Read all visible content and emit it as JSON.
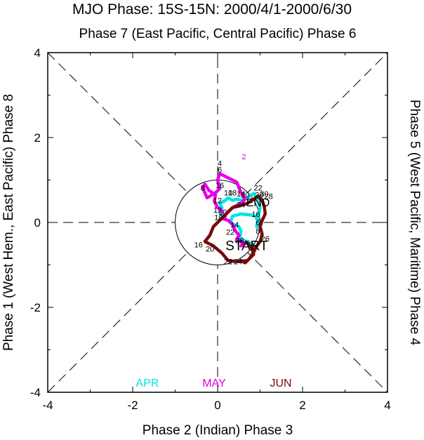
{
  "chart_data": {
    "type": "line",
    "title": "MJO Phase: 15S-15N: 2000/4/1-2000/6/30",
    "top_label": "Phase 7 (East Pacific, Central Pacific) Phase 6",
    "bottom_label": "Phase 2 (Indian) Phase 3",
    "left_label": "Phase 1 (West Hem., East Pacific) Phase 8",
    "right_label": "Phase 5 (West Pacific, Maritime) Phase 4",
    "xlim": [
      -4,
      4
    ],
    "ylim": [
      -4,
      4
    ],
    "x_ticks": [
      "-4",
      "-2",
      "0",
      "2",
      "4"
    ],
    "y_ticks": [
      "-4",
      "-2",
      "0",
      "2",
      "4"
    ],
    "unit_circle_radius": 1,
    "start_label": "START",
    "start_point": [
      0.85,
      -0.55
    ],
    "series": [
      {
        "name": "APR",
        "color": "#00e5e5",
        "points": [
          {
            "day": "1",
            "x": 0.85,
            "y": -0.55
          },
          {
            "day": "",
            "x": 0.72,
            "y": -0.45
          },
          {
            "day": "",
            "x": 0.6,
            "y": -0.42
          },
          {
            "day": "",
            "x": 0.52,
            "y": -0.35
          },
          {
            "day": "",
            "x": 0.55,
            "y": -0.2
          },
          {
            "day": "",
            "x": 0.5,
            "y": -0.1
          },
          {
            "day": "",
            "x": 0.38,
            "y": -0.05
          },
          {
            "day": "",
            "x": 0.3,
            "y": 0.0
          },
          {
            "day": "",
            "x": 0.35,
            "y": 0.15
          },
          {
            "day": "",
            "x": 0.55,
            "y": 0.2
          },
          {
            "day": "",
            "x": 0.75,
            "y": 0.18
          },
          {
            "day": "",
            "x": 0.9,
            "y": 0.15
          },
          {
            "day": "",
            "x": 0.95,
            "y": 0.02
          },
          {
            "day": "",
            "x": 0.92,
            "y": -0.1
          },
          {
            "day": "",
            "x": 0.95,
            "y": 0.1
          },
          {
            "day": "",
            "x": 1.0,
            "y": 0.35
          },
          {
            "day": "",
            "x": 0.95,
            "y": 0.55
          },
          {
            "day": "",
            "x": 0.85,
            "y": 0.68
          },
          {
            "day": "",
            "x": 0.75,
            "y": 0.62
          },
          {
            "day": "",
            "x": 0.65,
            "y": 0.55
          },
          {
            "day": "",
            "x": 0.55,
            "y": 0.52
          },
          {
            "day": "",
            "x": 0.45,
            "y": 0.55
          },
          {
            "day": "",
            "x": 0.35,
            "y": 0.52
          },
          {
            "day": "",
            "x": 0.25,
            "y": 0.58
          },
          {
            "day": "",
            "x": 0.15,
            "y": 0.5
          },
          {
            "day": "",
            "x": 0.05,
            "y": 0.45
          },
          {
            "day": "",
            "x": 0.1,
            "y": 0.35
          },
          {
            "day": "",
            "x": 0.08,
            "y": 0.22
          },
          {
            "day": "",
            "x": 0.1,
            "y": 0.12
          },
          {
            "day": "30",
            "x": 0.12,
            "y": 0.25
          }
        ]
      },
      {
        "name": "MAY",
        "color": "#e600e6",
        "points": [
          {
            "day": "",
            "x": 0.12,
            "y": 0.25
          },
          {
            "day": "",
            "x": 0.0,
            "y": 0.35
          },
          {
            "day": "",
            "x": -0.08,
            "y": 0.5
          },
          {
            "day": "",
            "x": -0.05,
            "y": 0.65
          },
          {
            "day": "",
            "x": -0.2,
            "y": 0.75
          },
          {
            "day": "",
            "x": -0.3,
            "y": 0.9
          },
          {
            "day": "",
            "x": -0.35,
            "y": 0.82
          },
          {
            "day": "",
            "x": -0.25,
            "y": 0.58
          },
          {
            "day": "",
            "x": -0.05,
            "y": 0.7
          },
          {
            "day": "",
            "x": 0.05,
            "y": 0.8
          },
          {
            "day": "",
            "x": 0.0,
            "y": 1.0
          },
          {
            "day": "",
            "x": 0.05,
            "y": 1.15
          },
          {
            "day": "",
            "x": 0.25,
            "y": 1.05
          },
          {
            "day": "",
            "x": 0.45,
            "y": 0.95
          },
          {
            "day": "",
            "x": 0.55,
            "y": 0.7
          },
          {
            "day": "",
            "x": 0.65,
            "y": 0.55
          },
          {
            "day": "",
            "x": 0.55,
            "y": 0.45
          },
          {
            "day": "",
            "x": 0.4,
            "y": 0.38
          },
          {
            "day": "",
            "x": 0.3,
            "y": 0.3
          },
          {
            "day": "",
            "x": 0.2,
            "y": 0.2
          },
          {
            "day": "",
            "x": 0.15,
            "y": 0.08
          },
          {
            "day": "",
            "x": 0.25,
            "y": 0.05
          },
          {
            "day": "",
            "x": 0.35,
            "y": -0.05
          },
          {
            "day": "",
            "x": 0.42,
            "y": -0.2
          },
          {
            "day": "",
            "x": 0.5,
            "y": -0.3
          },
          {
            "day": "",
            "x": 0.45,
            "y": -0.4
          },
          {
            "day": "",
            "x": 0.55,
            "y": -0.45
          },
          {
            "day": "",
            "x": 0.6,
            "y": -0.48
          },
          {
            "day": "",
            "x": 0.55,
            "y": -0.55
          },
          {
            "day": "",
            "x": 0.65,
            "y": -0.5
          },
          {
            "day": "",
            "x": 0.7,
            "y": -0.48
          }
        ]
      },
      {
        "name": "JUN",
        "color": "#7a0a0a",
        "points": [
          {
            "day": "",
            "x": 0.7,
            "y": -0.48
          },
          {
            "day": "",
            "x": 0.8,
            "y": -0.6
          },
          {
            "day": "",
            "x": 0.85,
            "y": -0.75
          },
          {
            "day": "",
            "x": 0.7,
            "y": -0.9
          },
          {
            "day": "",
            "x": 0.45,
            "y": -0.92
          },
          {
            "day": "",
            "x": 0.25,
            "y": -0.9
          },
          {
            "day": "",
            "x": 0.1,
            "y": -0.72
          },
          {
            "day": "",
            "x": -0.1,
            "y": -0.55
          },
          {
            "day": "",
            "x": -0.3,
            "y": -0.45
          },
          {
            "day": "",
            "x": -0.18,
            "y": -0.3
          },
          {
            "day": "",
            "x": -0.1,
            "y": -0.1
          },
          {
            "day": "",
            "x": 0.05,
            "y": 0.05
          },
          {
            "day": "",
            "x": 0.2,
            "y": 0.2
          },
          {
            "day": "",
            "x": 0.35,
            "y": 0.35
          },
          {
            "day": "",
            "x": 0.55,
            "y": 0.4
          },
          {
            "day": "",
            "x": 0.7,
            "y": 0.45
          },
          {
            "day": "",
            "x": 0.85,
            "y": 0.55
          },
          {
            "day": "",
            "x": 0.95,
            "y": 0.62
          },
          {
            "day": "",
            "x": 1.05,
            "y": 0.52
          },
          {
            "day": "",
            "x": 1.1,
            "y": 0.38
          },
          {
            "day": "",
            "x": 1.12,
            "y": 0.2
          },
          {
            "day": "",
            "x": 1.05,
            "y": 0.05
          },
          {
            "day": "",
            "x": 1.0,
            "y": -0.1
          },
          {
            "day": "",
            "x": 1.05,
            "y": -0.28
          },
          {
            "day": "",
            "x": 1.0,
            "y": -0.45
          },
          {
            "day": "",
            "x": 0.92,
            "y": -0.55
          },
          {
            "day": "",
            "x": 0.85,
            "y": -0.7
          },
          {
            "day": "",
            "x": 0.75,
            "y": -0.85
          },
          {
            "day": "",
            "x": 0.65,
            "y": -0.95
          },
          {
            "day": "",
            "x": 0.55,
            "y": -0.9
          }
        ]
      }
    ],
    "point_labels": [
      {
        "text": "2",
        "x": 0.62,
        "y": 1.55,
        "color": "#e600e6"
      },
      {
        "text": "4",
        "x": 0.05,
        "y": 1.4,
        "color": "#000000"
      },
      {
        "text": "6",
        "x": 0.05,
        "y": 1.25,
        "color": "#000000"
      },
      {
        "text": "8",
        "x": -0.35,
        "y": 0.82,
        "color": "#000000"
      },
      {
        "text": "16",
        "x": 0.05,
        "y": 0.88,
        "color": "#000000"
      },
      {
        "text": "10",
        "x": 0.25,
        "y": 0.7,
        "color": "#000000"
      },
      {
        "text": "12",
        "x": 0.0,
        "y": 0.52,
        "color": "#000000"
      },
      {
        "text": "18",
        "x": 0.35,
        "y": 0.7,
        "color": "#000000"
      },
      {
        "text": "14",
        "x": 0.55,
        "y": 0.68,
        "color": "#000000"
      },
      {
        "text": "20",
        "x": 0.65,
        "y": 0.65,
        "color": "#000000"
      },
      {
        "text": "22",
        "x": 0.95,
        "y": 0.82,
        "color": "#000000"
      },
      {
        "text": "26",
        "x": 0.98,
        "y": 0.65,
        "color": "#000000"
      },
      {
        "text": "28",
        "x": 1.2,
        "y": 0.62,
        "color": "#000000"
      },
      {
        "text": "30",
        "x": 1.1,
        "y": 0.68,
        "color": "#000000"
      },
      {
        "text": "END",
        "x": 0.95,
        "y": 0.45,
        "color": "#000000"
      },
      {
        "text": "24",
        "x": 0.55,
        "y": 0.42,
        "color": "#000000"
      },
      {
        "text": "12",
        "x": 0.0,
        "y": 0.3,
        "color": "#000000"
      },
      {
        "text": "10",
        "x": 0.02,
        "y": 0.12,
        "color": "#000000"
      },
      {
        "text": "16",
        "x": 0.9,
        "y": 0.2,
        "color": "#000000"
      },
      {
        "text": "14",
        "x": 0.4,
        "y": -0.05,
        "color": "#000000"
      },
      {
        "text": "6",
        "x": 0.95,
        "y": 0.0,
        "color": "#000000"
      },
      {
        "text": "26",
        "x": 1.12,
        "y": -0.38,
        "color": "#000000"
      },
      {
        "text": "22",
        "x": 0.3,
        "y": -0.22,
        "color": "#000000"
      },
      {
        "text": "28",
        "x": 0.52,
        "y": -0.42,
        "color": "#000000"
      },
      {
        "text": "8",
        "x": 0.95,
        "y": -0.2,
        "color": "#000000"
      },
      {
        "text": "16",
        "x": -0.45,
        "y": -0.52,
        "color": "#000000"
      },
      {
        "text": "20",
        "x": -0.18,
        "y": -0.62,
        "color": "#000000"
      },
      {
        "text": "22",
        "x": 0.25,
        "y": -0.92,
        "color": "#000000"
      },
      {
        "text": "24",
        "x": 0.48,
        "y": -0.92,
        "color": "#000000"
      }
    ],
    "legend": [
      {
        "label": "APR",
        "color": "#00e5e5"
      },
      {
        "label": "MAY",
        "color": "#e600e6"
      },
      {
        "label": "JUN",
        "color": "#7a0a0a"
      }
    ],
    "legend_placement": "bottom-inside",
    "grid": false
  }
}
